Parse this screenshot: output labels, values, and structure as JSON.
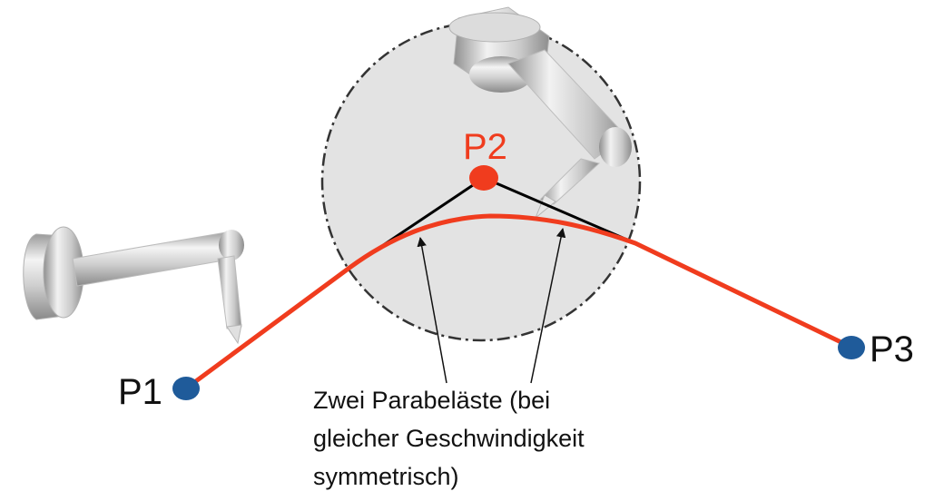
{
  "points": [
    {
      "label": "P1",
      "color": "#1f5b9a"
    },
    {
      "label": "P2",
      "color": "#f03c1e"
    },
    {
      "label": "P3",
      "color": "#1f5b9a"
    }
  ],
  "annotation": {
    "lines": [
      "Zwei Parabeläste (bei",
      "gleicher Geschwindigkeit",
      "symmetrisch)"
    ]
  },
  "colors": {
    "path": "#f03c1e",
    "approx_zone_fill": "#e3e3e3",
    "approx_zone_border": "#333333",
    "corner_lines": "#000000",
    "robot_metal": "#c8c8c8"
  },
  "icons": {
    "robot_left": "robot-arm-icon",
    "robot_top": "robot-arm-icon"
  }
}
